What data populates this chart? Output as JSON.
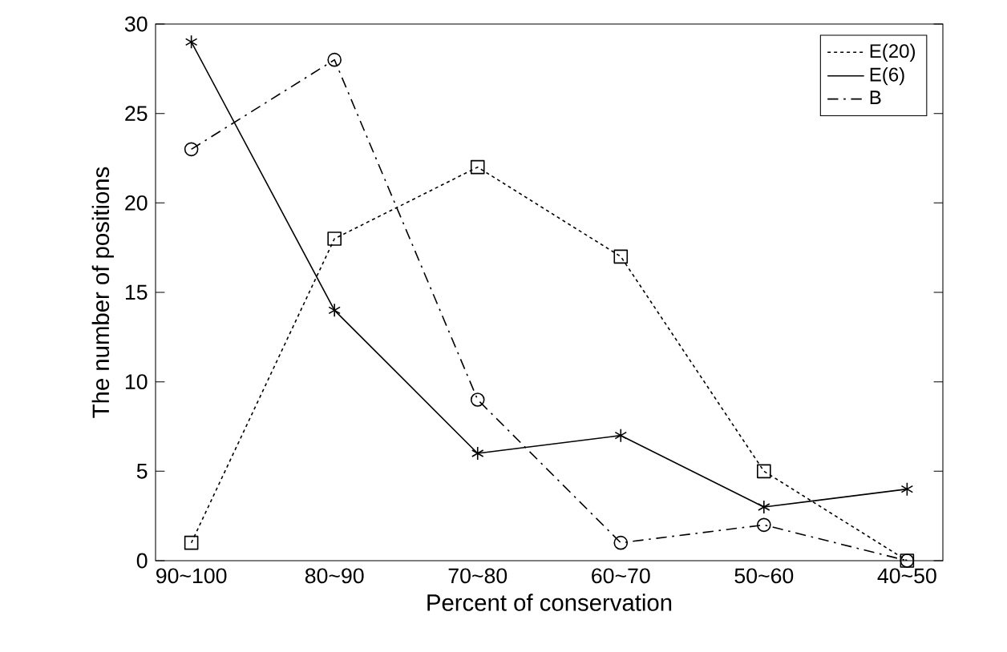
{
  "chart_data": {
    "type": "line",
    "xlabel": "Percent of conservation",
    "ylabel": "The number of positions",
    "categories": [
      "90~100",
      "80~90",
      "70~80",
      "60~70",
      "50~60",
      "40~50"
    ],
    "ylim": [
      0,
      30
    ],
    "yticks": [
      0,
      5,
      10,
      15,
      20,
      25,
      30
    ],
    "legend": "top right",
    "grid": false,
    "series": [
      {
        "name": "E(20)",
        "color": "#000000",
        "line_style": "dotted",
        "marker": "square",
        "values": [
          1,
          18,
          22,
          17,
          5,
          0
        ]
      },
      {
        "name": "E(6)",
        "color": "#000000",
        "line_style": "solid",
        "marker": "cross",
        "values": [
          29,
          14,
          6,
          7,
          3,
          4
        ]
      },
      {
        "name": "B",
        "color": "#000000",
        "line_style": "dashdot",
        "marker": "circle",
        "values": [
          23,
          28,
          9,
          1,
          2,
          0
        ]
      }
    ]
  }
}
